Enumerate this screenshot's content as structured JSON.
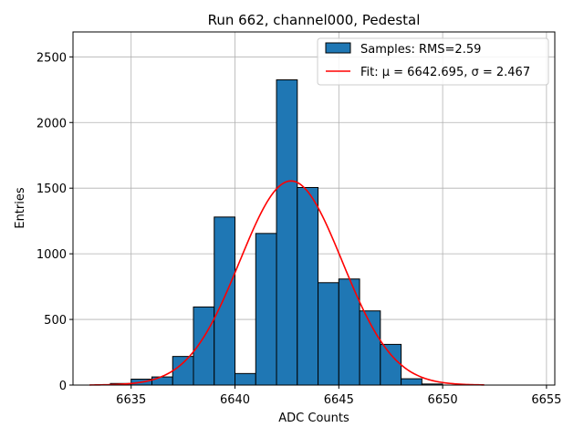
{
  "chart_data": {
    "type": "bar",
    "title": "Run 662, channel000, Pedestal",
    "xlabel": "ADC Counts",
    "ylabel": "Entries",
    "xlim": [
      6632.2,
      6655.4
    ],
    "ylim": [
      0,
      2690
    ],
    "xticks": [
      6635,
      6640,
      6645,
      6650,
      6655
    ],
    "yticks": [
      0,
      500,
      1000,
      1500,
      2000,
      2500
    ],
    "grid": true,
    "legend_position": "top-right",
    "bar_color": "#1f77b4",
    "fit_color": "#ff0000",
    "histogram": {
      "name": "Samples: RMS=2.59",
      "bin_width": 1,
      "bins": [
        {
          "left": 6634,
          "value": 12
        },
        {
          "left": 6635,
          "value": 45
        },
        {
          "left": 6636,
          "value": 62
        },
        {
          "left": 6637,
          "value": 218
        },
        {
          "left": 6638,
          "value": 595
        },
        {
          "left": 6639,
          "value": 1280
        },
        {
          "left": 6640,
          "value": 88
        },
        {
          "left": 6641,
          "value": 1155
        },
        {
          "left": 6642,
          "value": 2325
        },
        {
          "left": 6643,
          "value": 1505
        },
        {
          "left": 6644,
          "value": 780
        },
        {
          "left": 6645,
          "value": 808
        },
        {
          "left": 6646,
          "value": 565
        },
        {
          "left": 6647,
          "value": 310
        },
        {
          "left": 6648,
          "value": 48
        },
        {
          "left": 6649,
          "value": 8
        }
      ]
    },
    "fit": {
      "name": "Fit: μ = 6642.695, σ = 2.467",
      "mu": 6642.695,
      "sigma": 2.467,
      "amplitude": 1555,
      "x_range": [
        6633.0,
        6652.0
      ]
    }
  }
}
